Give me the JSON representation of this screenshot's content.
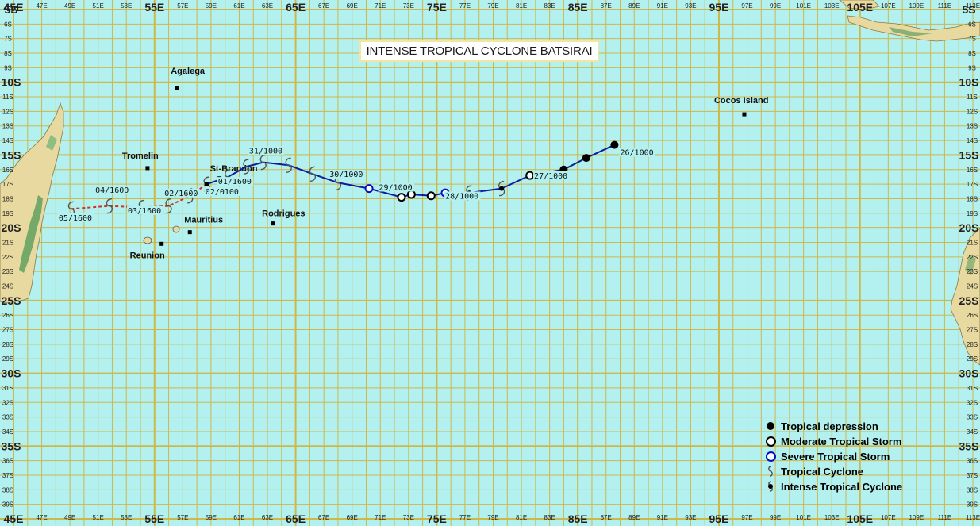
{
  "title": "INTENSE TROPICAL CYCLONE BATSIRAI",
  "colors": {
    "ocean": "#b3f0f0",
    "grid": "#cdb84a",
    "land": "#e8d9a0",
    "vegetation": "#5fa05f",
    "track_blue": "#0c1ea0",
    "track_red": "#d03020",
    "label_bg": "#b3f0f0"
  },
  "axis": {
    "top_labels_major": [
      "45E",
      "55E",
      "65E",
      "75E",
      "85E",
      "95E",
      "105E"
    ],
    "top_labels_minor": [
      "47E",
      "49E",
      "51E",
      "53E",
      "57E",
      "59E",
      "61E",
      "63E",
      "67E",
      "69E",
      "71E",
      "73E",
      "77E",
      "79E",
      "81E",
      "83E",
      "87E",
      "89E",
      "91E",
      "93E",
      "97E",
      "99E",
      "101E",
      "103E",
      "107E",
      "109E",
      "111E",
      "113E"
    ],
    "side_labels_major": [
      "5S",
      "10S",
      "15S",
      "20S",
      "25S",
      "30S",
      "35S"
    ],
    "side_labels_minor": [
      "6S",
      "7S",
      "8S",
      "9S",
      "11S",
      "12S",
      "13S",
      "14S",
      "16S",
      "17S",
      "18S",
      "19S",
      "21S",
      "22S",
      "23S",
      "24S",
      "26S",
      "27S",
      "28S",
      "29S",
      "31S",
      "32S",
      "33S",
      "34S",
      "36S",
      "37S",
      "38S",
      "39S"
    ]
  },
  "places": [
    {
      "name": "Agalega",
      "lon": 56.6,
      "lat": -10.4
    },
    {
      "name": "Tromelin",
      "lon": 54.5,
      "lat": -15.9
    },
    {
      "name": "St-Brandon",
      "lon": 59.6,
      "lat": -16.6
    },
    {
      "name": "Rodrigues",
      "lon": 63.4,
      "lat": -19.7
    },
    {
      "name": "Mauritius",
      "lon": 57.5,
      "lat": -20.3
    },
    {
      "name": "Reunion",
      "lon": 55.5,
      "lat": -21.1
    },
    {
      "name": "Cocos Island",
      "lon": 96.8,
      "lat": -12.2
    }
  ],
  "track": [
    {
      "lon": 87.6,
      "lat": -14.3,
      "category": "Tropical depression"
    },
    {
      "lon": 85.6,
      "lat": -15.2,
      "category": "Tropical depression"
    },
    {
      "lon": 84.0,
      "lat": -16.0,
      "category": "Tropical depression"
    },
    {
      "lon": 81.6,
      "lat": -16.4,
      "category": "Moderate Tropical Storm"
    },
    {
      "lon": 79.6,
      "lat": -17.3,
      "category": "Intense Tropical Cyclone"
    },
    {
      "lon": 77.3,
      "lat": -17.6,
      "category": "Intense Tropical Cyclone"
    },
    {
      "lon": 75.6,
      "lat": -17.6,
      "category": "Severe Tropical Storm"
    },
    {
      "lon": 74.6,
      "lat": -17.8,
      "category": "Moderate Tropical Storm"
    },
    {
      "lon": 73.2,
      "lat": -17.7,
      "category": "Moderate Tropical Storm"
    },
    {
      "lon": 72.5,
      "lat": -17.9,
      "category": "Moderate Tropical Storm"
    },
    {
      "lon": 70.2,
      "lat": -17.3,
      "category": "Severe Tropical Storm"
    },
    {
      "lon": 68.0,
      "lat": -16.9,
      "category": "Tropical Cyclone"
    },
    {
      "lon": 66.2,
      "lat": -16.3,
      "category": "Tropical Cyclone"
    },
    {
      "lon": 64.5,
      "lat": -15.7,
      "category": "Tropical Cyclone"
    },
    {
      "lon": 62.7,
      "lat": -15.5,
      "category": "Tropical Cyclone"
    },
    {
      "lon": 61.5,
      "lat": -15.8,
      "category": "Tropical Cyclone"
    },
    {
      "lon": 60.2,
      "lat": -16.5,
      "category": "Tropical Cyclone"
    },
    {
      "lon": 58.7,
      "lat": -17.0,
      "category": "Intense Tropical Cyclone"
    }
  ],
  "track_dissipating": [
    {
      "lon": 58.7,
      "lat": -17.0
    },
    {
      "lon": 57.5,
      "lat": -17.8
    },
    {
      "lon": 56.0,
      "lat": -18.5
    },
    {
      "lon": 54.1,
      "lat": -18.6
    },
    {
      "lon": 51.8,
      "lat": -18.5
    },
    {
      "lon": 49.1,
      "lat": -18.7
    }
  ],
  "date_labels": [
    {
      "text": "26/1000",
      "lon": 88.0,
      "lat": -15.0
    },
    {
      "text": "27/1000",
      "lon": 81.9,
      "lat": -16.6
    },
    {
      "text": "28/1000",
      "lon": 75.6,
      "lat": -18.0
    },
    {
      "text": "29/1000",
      "lon": 70.9,
      "lat": -17.4
    },
    {
      "text": "30/1000",
      "lon": 67.4,
      "lat": -16.5
    },
    {
      "text": "31/1000",
      "lon": 61.7,
      "lat": -14.9
    },
    {
      "text": "01/1600",
      "lon": 59.5,
      "lat": -17.0
    },
    {
      "text": "02/0100",
      "lon": 58.6,
      "lat": -17.7
    },
    {
      "text": "02/1600",
      "lon": 55.7,
      "lat": -17.8
    },
    {
      "text": "03/1600",
      "lon": 53.1,
      "lat": -19.0
    },
    {
      "text": "04/1600",
      "lon": 50.8,
      "lat": -17.6
    },
    {
      "text": "05/1600",
      "lon": 48.2,
      "lat": -19.5
    }
  ],
  "legend": [
    {
      "label": "Tropical depression",
      "symbol": "filled-black-dot"
    },
    {
      "label": "Moderate Tropical Storm",
      "symbol": "black-ring"
    },
    {
      "label": "Severe Tropical Storm",
      "symbol": "blue-ring"
    },
    {
      "label": "Tropical Cyclone",
      "symbol": "cyclone-glyph"
    },
    {
      "label": "Intense Tropical Cyclone",
      "symbol": "intense-cyclone-glyph"
    }
  ]
}
